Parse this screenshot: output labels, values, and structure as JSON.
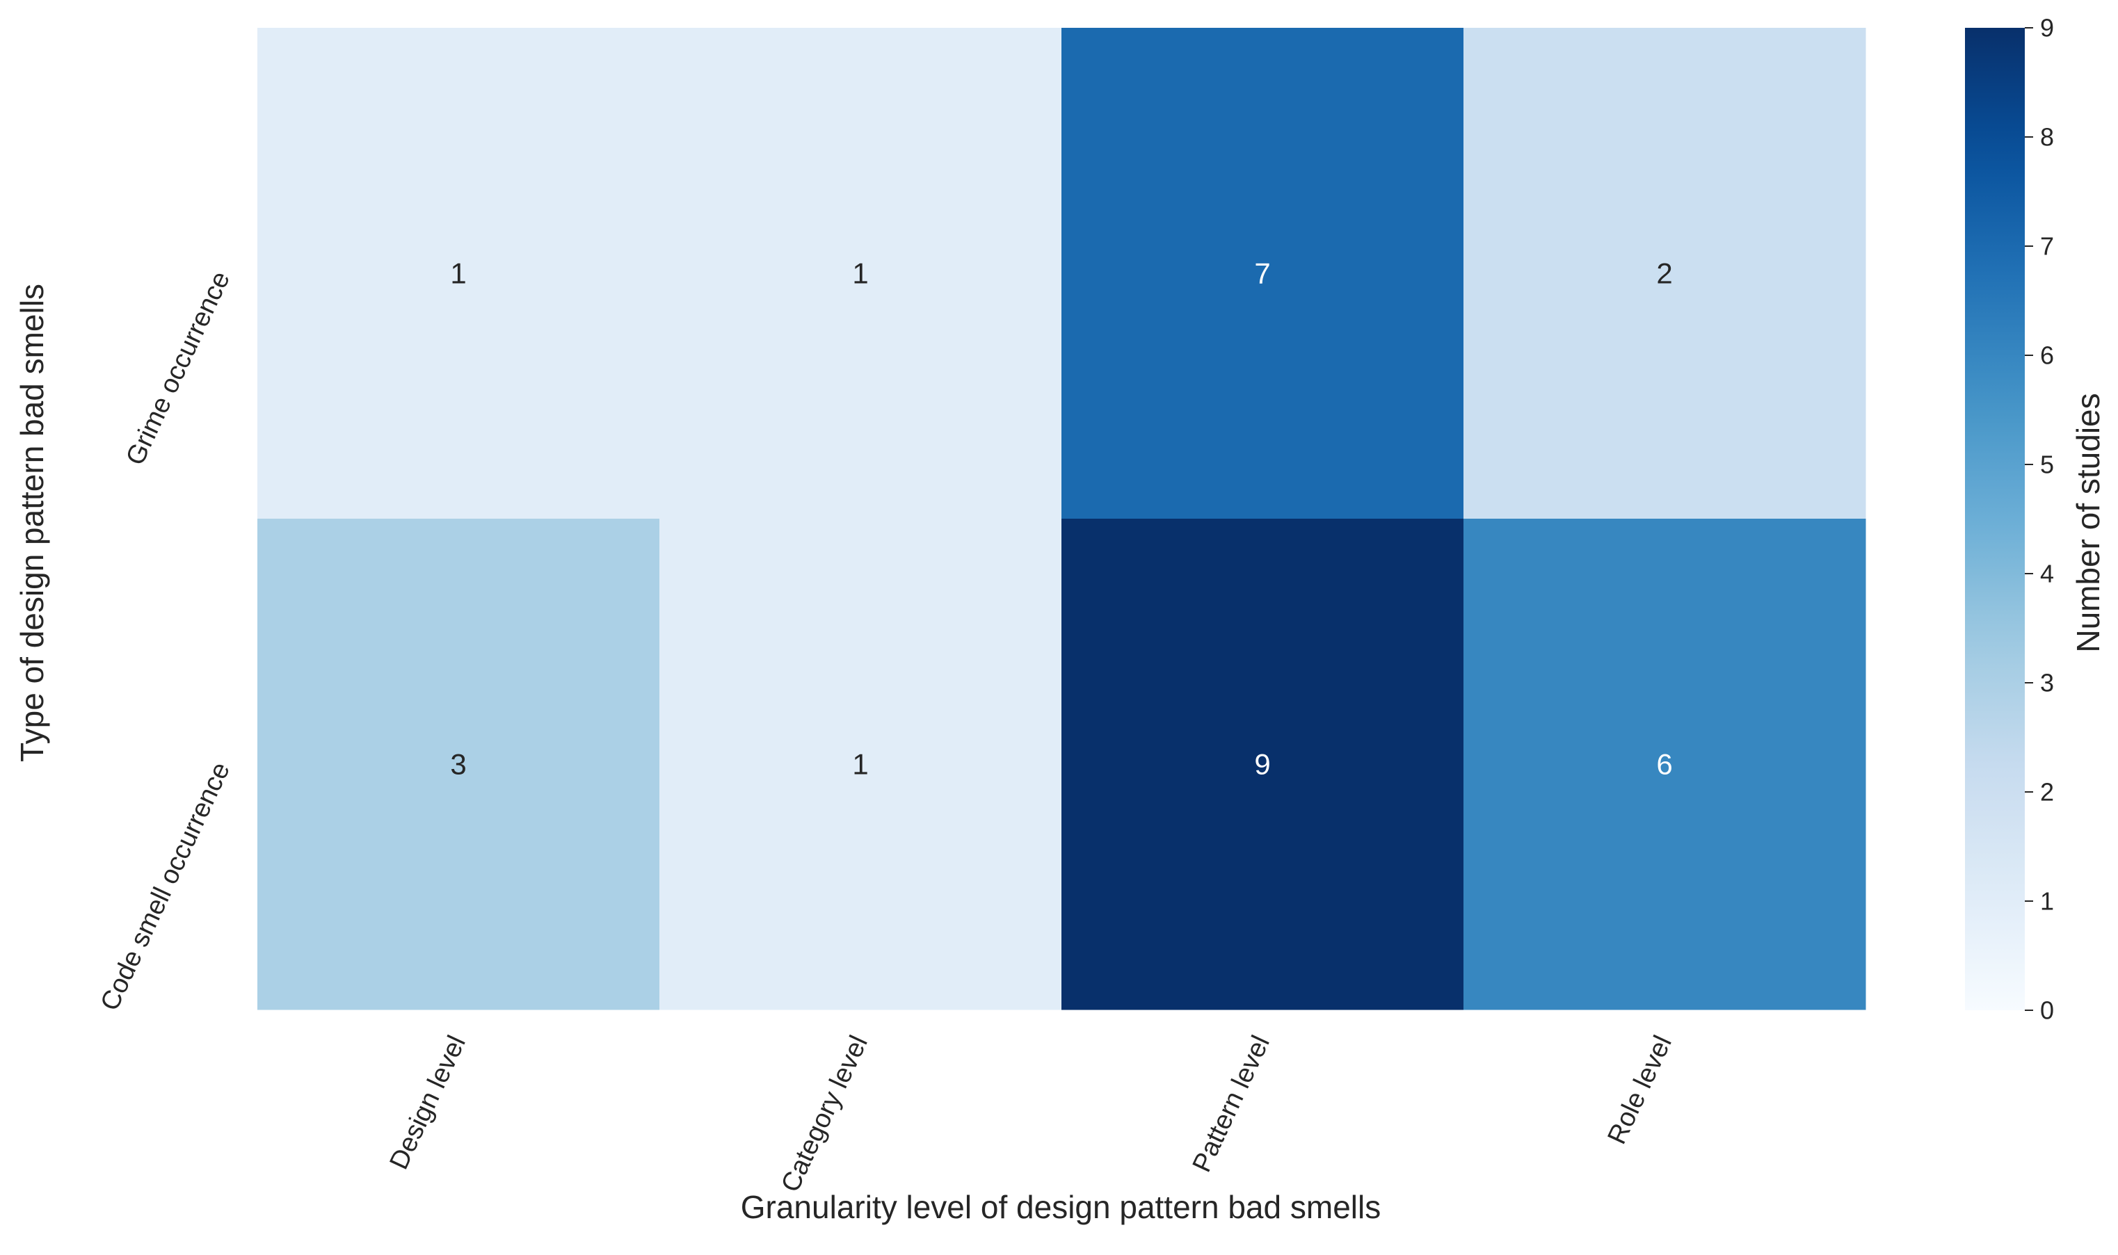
{
  "chart_data": {
    "type": "heatmap",
    "title": "",
    "xlabel": "Granularity level of design pattern bad smells",
    "ylabel": "Type of design pattern bad smells",
    "x_categories": [
      "Design level",
      "Category level",
      "Pattern level",
      "Role level"
    ],
    "y_categories": [
      "Grime occurrence",
      "Code smell occurrence"
    ],
    "values": [
      [
        1,
        1,
        7,
        2
      ],
      [
        3,
        1,
        9,
        6
      ]
    ],
    "colorbar": {
      "label": "Number of studies",
      "range": [
        0,
        9
      ],
      "ticks": [
        0,
        1,
        2,
        3,
        4,
        5,
        6,
        7,
        8,
        9
      ],
      "colormap": "Blues"
    },
    "colors": {
      "low": "#f7fbff",
      "high": "#08306b",
      "text_dark": "#262626",
      "text_light": "#ffffff"
    }
  }
}
